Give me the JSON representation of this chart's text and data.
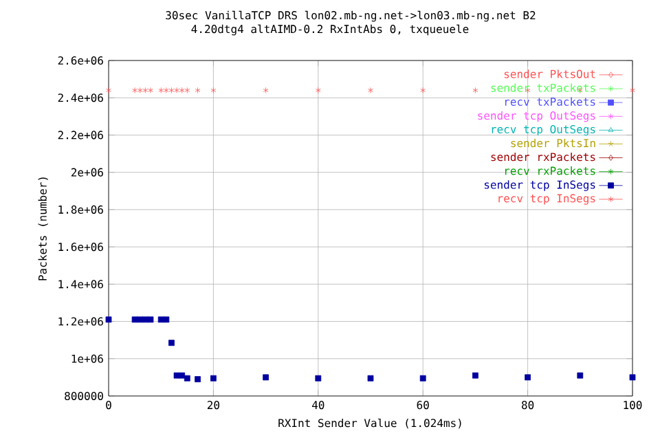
{
  "chart_data": {
    "type": "scatter",
    "title": "30sec VanillaTCP DRS lon02.mb-ng.net->lon03.mb-ng.net B2",
    "subtitle": "4.20dtg4 altAIMD-0.2 RxIntAbs 0, txqueuele",
    "xlabel": "RXInt Sender Value (1.024ms)",
    "ylabel": "Packets (number)",
    "x": [
      0,
      5,
      6,
      7,
      8,
      10,
      11,
      12,
      13,
      14,
      15,
      17,
      20,
      30,
      40,
      50,
      60,
      70,
      80,
      90,
      100
    ],
    "series": [
      {
        "name": "sender PktsOut",
        "color": "#ff5050",
        "marker": "diamond",
        "values": [
          null,
          null,
          null,
          null,
          null,
          null,
          null,
          null,
          null,
          null,
          null,
          null,
          null,
          null,
          null,
          null,
          null,
          null,
          null,
          null,
          null
        ]
      },
      {
        "name": "sender txPackets",
        "color": "#50ff50",
        "marker": "cross",
        "values": [
          null,
          null,
          null,
          null,
          null,
          null,
          null,
          null,
          null,
          null,
          null,
          null,
          null,
          null,
          null,
          null,
          null,
          null,
          null,
          null,
          null
        ]
      },
      {
        "name": "recv txPackets",
        "color": "#5050ff",
        "marker": "square",
        "values": [
          null,
          null,
          null,
          null,
          null,
          null,
          null,
          null,
          null,
          null,
          null,
          null,
          null,
          null,
          null,
          null,
          null,
          null,
          null,
          null,
          null
        ]
      },
      {
        "name": "sender tcp OutSegs",
        "color": "#ff50ff",
        "marker": "cross",
        "values": [
          null,
          null,
          null,
          null,
          null,
          null,
          null,
          null,
          null,
          null,
          null,
          null,
          null,
          null,
          null,
          null,
          null,
          null,
          null,
          null,
          null
        ]
      },
      {
        "name": "recv tcp OutSegs",
        "color": "#00b4b4",
        "marker": "triangle",
        "values": [
          null,
          null,
          null,
          null,
          null,
          null,
          null,
          null,
          null,
          null,
          null,
          null,
          null,
          null,
          null,
          null,
          null,
          null,
          null,
          null,
          null
        ]
      },
      {
        "name": "sender PktsIn",
        "color": "#b4a000",
        "marker": "star",
        "values": [
          null,
          null,
          null,
          null,
          null,
          null,
          null,
          null,
          null,
          null,
          null,
          null,
          null,
          null,
          null,
          null,
          null,
          null,
          null,
          null,
          null
        ]
      },
      {
        "name": "sender rxPackets",
        "color": "#a00000",
        "marker": "diamond",
        "values": [
          null,
          null,
          null,
          null,
          null,
          null,
          null,
          null,
          null,
          null,
          null,
          null,
          null,
          null,
          null,
          null,
          null,
          null,
          null,
          null,
          null
        ]
      },
      {
        "name": "recv rxPackets",
        "color": "#00a000",
        "marker": "cross",
        "values": [
          null,
          null,
          null,
          null,
          null,
          null,
          null,
          null,
          null,
          null,
          null,
          null,
          null,
          null,
          null,
          null,
          null,
          null,
          null,
          null,
          null
        ]
      },
      {
        "name": "sender tcp InSegs",
        "color": "#0000a0",
        "marker": "square",
        "values": [
          1210000,
          1210000,
          1210000,
          1210000,
          1210000,
          1210000,
          1210000,
          1085000,
          910000,
          910000,
          895000,
          890000,
          895000,
          900000,
          895000,
          895000,
          895000,
          910000,
          900000,
          910000,
          900000
        ]
      },
      {
        "name": "recv tcp InSegs",
        "color": "#ff5050",
        "marker": "cross",
        "values": [
          2440000,
          2440000,
          2440000,
          2440000,
          2440000,
          2440000,
          2440000,
          2440000,
          2440000,
          2440000,
          2440000,
          2440000,
          2440000,
          2440000,
          2440000,
          2440000,
          2440000,
          2440000,
          2440000,
          2440000,
          2440000
        ]
      }
    ],
    "xlim": [
      0,
      100
    ],
    "xticks": [
      0,
      20,
      40,
      60,
      80,
      100
    ],
    "ylim": [
      800000,
      2600000
    ],
    "yticks": [
      800000,
      {
        "value": 1000000,
        "label": "1e+06"
      },
      {
        "value": 1200000,
        "label": "1.2e+06"
      },
      {
        "value": 1400000,
        "label": "1.4e+06"
      },
      {
        "value": 1600000,
        "label": "1.6e+06"
      },
      {
        "value": 1800000,
        "label": "1.8e+06"
      },
      {
        "value": 2000000,
        "label": "2e+06"
      },
      {
        "value": 2200000,
        "label": "2.2e+06"
      },
      {
        "value": 2400000,
        "label": "2.4e+06"
      },
      {
        "value": 2600000,
        "label": "2.6e+06"
      }
    ],
    "grid": true,
    "legend": "top right"
  }
}
